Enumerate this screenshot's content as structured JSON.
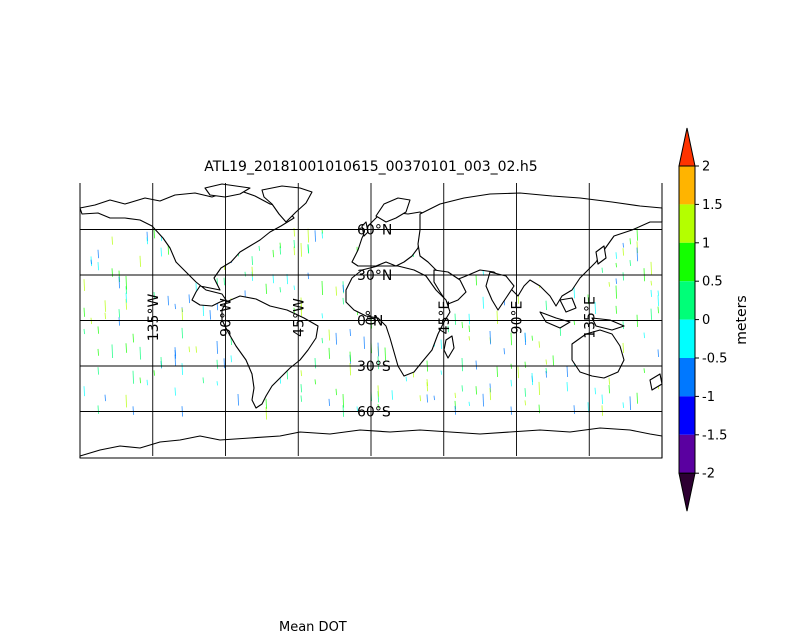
{
  "title": "ATL19_20181001010615_00370101_003_02.h5",
  "caption": "Mean DOT",
  "colorbar": {
    "label": "meters",
    "ticks": [
      "2",
      "1.5",
      "1",
      "0.5",
      "0",
      "-0.5",
      "-1",
      "-1.5",
      "-2"
    ],
    "colors": [
      "#ff3300",
      "#ffb400",
      "#b4ff00",
      "#14ff00",
      "#00ff78",
      "#00ffff",
      "#0078ff",
      "#0000ff",
      "#5a00a0",
      "#2d0032"
    ]
  },
  "map": {
    "projection": "Plate Carree",
    "lon_range": [
      -180,
      180
    ],
    "lat_range": [
      -90,
      90
    ],
    "meridians": [
      -135,
      -90,
      -45,
      0,
      45,
      90,
      135
    ],
    "parallels": [
      60,
      30,
      0,
      -30,
      -60
    ],
    "lon_labels": [
      "135°W",
      "90°W",
      "45°W",
      "0°",
      "45°E",
      "90°E",
      "135°E"
    ],
    "lat_labels": [
      "60°N",
      "30°N",
      "0°N",
      "30°S",
      "60°S"
    ]
  }
}
